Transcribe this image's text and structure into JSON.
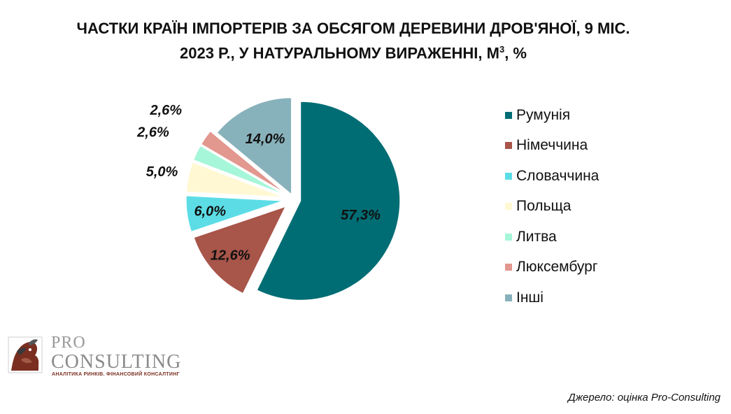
{
  "title": {
    "line1": "ЧАСТКИ КРАЇН ІМПОРТЕРІВ ЗА ОБСЯГОМ ДЕРЕВИНИ ДРОВ'ЯНОЇ, 9 МІС.",
    "line2_pre": "2023 Р., У НАТУРАЛЬНОМУ ВИРАЖЕННІ, М",
    "line2_sup": "3",
    "line2_post": ", %"
  },
  "chart_data": {
    "type": "pie",
    "title": "ЧАСТКИ КРАЇН ІМПОРТЕРІВ ЗА ОБСЯГОМ ДЕРЕВИНИ ДРОВ'ЯНОЇ, 9 МІС. 2023 Р., У НАТУРАЛЬНОМУ ВИРАЖЕННІ, М3, %",
    "legend_position": "right",
    "slices": [
      {
        "label": "Румунія",
        "value": 57.3,
        "display": "57,3%",
        "color": "#006d74"
      },
      {
        "label": "Німеччина",
        "value": 12.6,
        "display": "12,6%",
        "color": "#a8554a"
      },
      {
        "label": "Словаччина",
        "value": 6.0,
        "display": "6,0%",
        "color": "#5cdde6"
      },
      {
        "label": "Польща",
        "value": 5.0,
        "display": "5,0%",
        "color": "#fff8d2"
      },
      {
        "label": "Литва",
        "value": 2.6,
        "display": "2,6%",
        "color": "#a6f6d9"
      },
      {
        "label": "Люксембург",
        "value": 2.6,
        "display": "2,6%",
        "color": "#e2978f"
      },
      {
        "label": "Інші",
        "value": 14.0,
        "display": "14,0%",
        "color": "#88b2bb"
      }
    ]
  },
  "logo": {
    "pro": "PRO",
    "consulting": "CONSULTING",
    "tagline": "АНАЛІТИКА РИНКІВ. ФІНАНСОВИЙ КОНСАЛТИНГ"
  },
  "source": "Джерело: оцінка Pro-Consulting"
}
